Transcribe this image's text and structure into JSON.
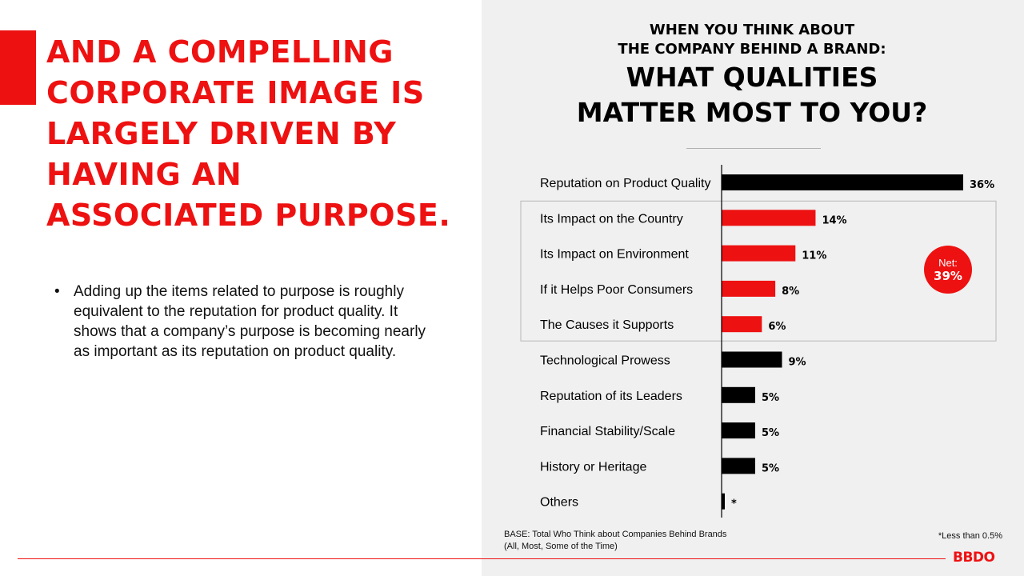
{
  "headline": "AND A COMPELLING CORPORATE IMAGE IS LARGELY DRIVEN BY HAVING AN ASSOCIATED PURPOSE.",
  "bullets": [
    "Adding up the items related to purpose is roughly equivalent to the reputation for product quality. It shows that a company’s purpose is becoming nearly as important as its reputation on product quality."
  ],
  "bullet_glyph": "•",
  "net_badge": {
    "label": "Net:",
    "value": "39%"
  },
  "base_note": "BASE: Total Who Think about Companies Behind Brands (All, Most, Some of the Time)",
  "footnote": "*Less than 0.5%",
  "logo": "BBDO",
  "colors": {
    "accent": "#ee1111",
    "bar_default": "#000000",
    "bar_purpose": "#ee1111",
    "panel": "#f0f0f0"
  },
  "chart_data": {
    "type": "bar",
    "orientation": "horizontal",
    "title_lines": [
      "WHEN YOU THINK ABOUT",
      "THE COMPANY BEHIND A BRAND:",
      "WHAT QUALITIES",
      "MATTER MOST TO YOU?"
    ],
    "categories": [
      "Reputation on Product Quality",
      "Its Impact on the Country",
      "Its Impact on Environment",
      "If it Helps Poor Consumers",
      "The Causes it Supports",
      "Technological Prowess",
      "Reputation of its Leaders",
      "Financial Stability/Scale",
      "History or Heritage",
      "Others"
    ],
    "values": [
      36,
      14,
      11,
      8,
      6,
      9,
      5,
      5,
      5,
      0.4
    ],
    "value_labels": [
      "36%",
      "14%",
      "11%",
      "8%",
      "6%",
      "9%",
      "5%",
      "5%",
      "5%",
      "*"
    ],
    "highlighted": [
      false,
      true,
      true,
      true,
      true,
      false,
      false,
      false,
      false,
      false
    ],
    "highlight_group": "purpose",
    "unit": "%",
    "xlim": [
      0,
      36
    ]
  }
}
